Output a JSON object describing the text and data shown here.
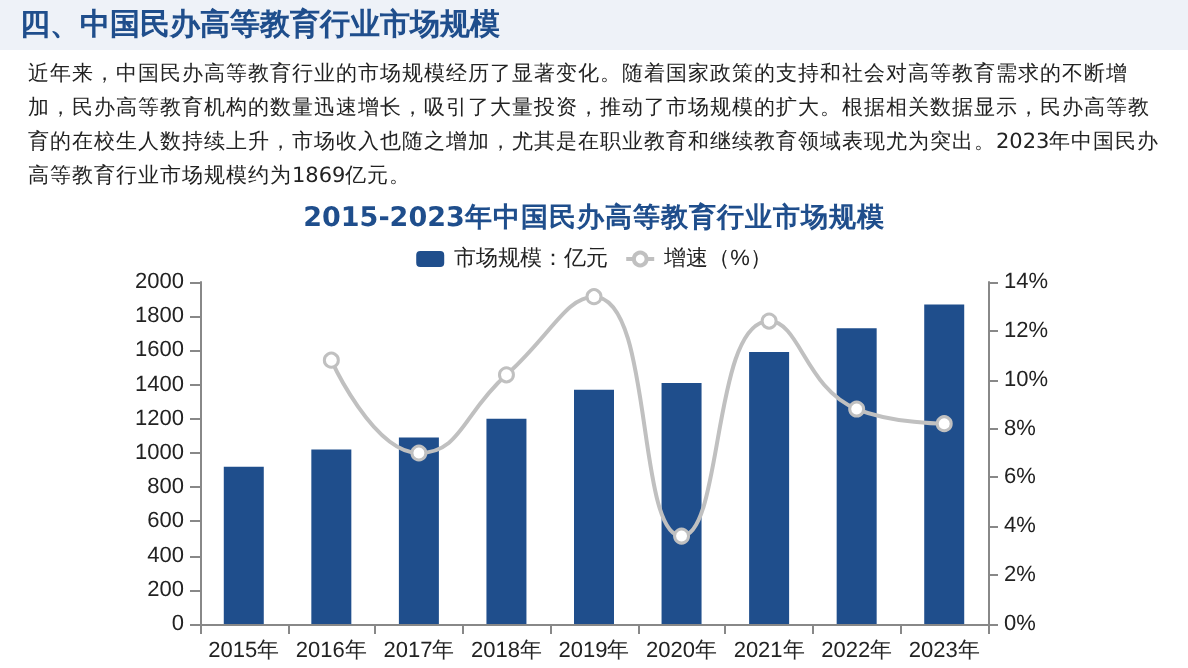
{
  "chart_data": {
    "type": "bar",
    "title": "2015-2023年中国民办高等教育行业市场规模",
    "annotations": [
      "四、中国民办高等教育行业市场规模",
      "近年来，中国民办高等教育行业的市场规模经历了显著变化。随着国家政策的支持和社会对高等教育需求的不断增加，民办高等教育机构的数量迅速增长，吸引了大量投资，推动了市场规模的扩大。根据相关数据显示，民办高等教育的在校生人数持续上升，市场收入也随之增加，尤其是在职业教育和继续教育领域表现尤为突出。2023年中国民办高等教育行业市场规模约为1869亿元。"
    ],
    "categories": [
      "2015年",
      "2016年",
      "2017年",
      "2018年",
      "2019年",
      "2020年",
      "2021年",
      "2022年",
      "2023年"
    ],
    "series": [
      {
        "name": "市场规模：亿元",
        "color": "#1f4e8c",
        "values": [
          920,
          1020,
          1090,
          1200,
          1370,
          1410,
          1590,
          1730,
          1869
        ]
      },
      {
        "name": "增速（%）",
        "type": "line",
        "axis": "y2",
        "color": "#c0c0c0",
        "marker": "circle",
        "values": [
          null,
          10.8,
          7.0,
          10.2,
          13.4,
          3.6,
          12.4,
          8.8,
          8.2
        ]
      }
    ],
    "ylim": [
      0,
      2000
    ],
    "yticks": [
      0,
      200,
      400,
      600,
      800,
      1000,
      1200,
      1400,
      1600,
      1800,
      2000
    ],
    "y2lim": [
      0,
      14
    ],
    "y2ticks": [
      {
        "value": 0,
        "label": "0%"
      },
      {
        "value": 2,
        "label": "2%"
      },
      {
        "value": 4,
        "label": "4%"
      },
      {
        "value": 6,
        "label": "6%"
      },
      {
        "value": 8,
        "label": "8%"
      },
      {
        "value": 10,
        "label": "10%"
      },
      {
        "value": 12,
        "label": "12%"
      },
      {
        "value": 14,
        "label": "14%"
      }
    ],
    "grid": false,
    "legend": "top"
  }
}
